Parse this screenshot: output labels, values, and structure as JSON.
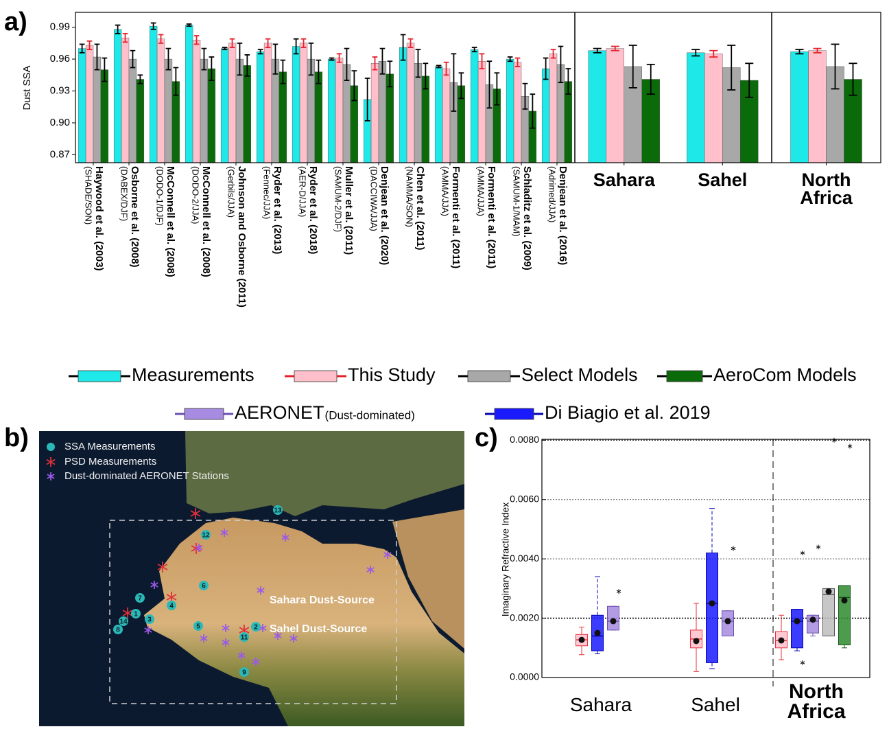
{
  "chart_data": [
    {
      "type": "bar",
      "panel_label": "a)",
      "ylabel": "Dust SSA",
      "ylim": [
        0.8625,
        1.004
      ],
      "yticks": [
        0.87,
        {
          "value": 0.9,
          "label": "0.90"
        },
        0.93,
        0.96,
        0.99
      ],
      "categories": [
        "Haywood et al. (2003)",
        "Osborne et al. (2008)",
        "McConnell et al. (2008)",
        "McConnell et al. (2008)",
        "Johnson and Osborne (2011)",
        "Ryder et al. (2013)",
        "Ryder et al. (2018)",
        "Muller et al. (2011)",
        "Denjean et al. (2020)",
        "Chen et al. (2011)",
        "Formenti et al. (2011)",
        "Formenti et al. (2011)",
        "Schladitz et al. (2009)",
        "Denjean et al. (2016)",
        "Sahara",
        "Sahel",
        "North Africa"
      ],
      "category_sublabels": [
        "(SHADE/SON)",
        "(DABEX/DJF)",
        "(DODO-1/DJF)",
        "(DODO-2/JJA)",
        "(Gerbils/JJA)",
        "(Fennec/JJA)",
        "(AER-D/JJA)",
        "(SAMUM-2/DJF)",
        "(DACCIWA/JJA)",
        "(NAMMA/SON)",
        "(AMMA/JJA)",
        "(AMMA/JJA)",
        "(SAMUM-1/MAM)",
        "(Adrimed/JJA)",
        null,
        null,
        null
      ],
      "series": [
        {
          "name": "Measurements",
          "color": "#1fe8e8",
          "error_color": "#000000",
          "values": [
            0.97,
            0.988,
            0.991,
            0.992,
            0.97,
            0.967,
            0.972,
            0.96,
            0.922,
            0.971,
            0.953,
            0.969,
            0.96,
            0.951,
            0.968,
            0.966,
            0.967
          ],
          "errors": [
            0.004,
            0.004,
            0.003,
            0.001,
            0.001,
            0.002,
            0.007,
            0.001,
            0.02,
            0.012,
            0.001,
            0.002,
            0.002,
            0.01,
            0.002,
            0.003,
            0.002
          ]
        },
        {
          "name": "This Study",
          "color": "#ffc0cb",
          "error_color": "#e8202a",
          "values": [
            0.973,
            0.98,
            0.979,
            0.978,
            0.975,
            0.975,
            0.975,
            0.961,
            0.956,
            0.975,
            0.951,
            0.958,
            0.957,
            0.965,
            0.97,
            0.965,
            0.968
          ],
          "errors": [
            0.004,
            0.004,
            0.004,
            0.004,
            0.004,
            0.004,
            0.004,
            0.004,
            0.006,
            0.004,
            0.006,
            0.007,
            0.004,
            0.004,
            0.002,
            0.003,
            0.002
          ]
        },
        {
          "name": "Select Models",
          "color": "#a8a8a8",
          "error_color": "#000000",
          "values": [
            0.962,
            0.96,
            0.96,
            0.96,
            0.96,
            0.96,
            0.96,
            0.955,
            0.958,
            0.956,
            0.938,
            0.936,
            0.925,
            0.955,
            0.953,
            0.952,
            0.953
          ],
          "errors": [
            0.012,
            0.008,
            0.01,
            0.01,
            0.015,
            0.014,
            0.015,
            0.015,
            0.012,
            0.013,
            0.027,
            0.022,
            0.012,
            0.017,
            0.02,
            0.021,
            0.021
          ]
        },
        {
          "name": "AeroCom Models",
          "color": "#0b6b0b",
          "error_color": "#000000",
          "values": [
            0.95,
            0.941,
            0.939,
            0.951,
            0.954,
            0.948,
            0.948,
            0.935,
            0.946,
            0.944,
            0.935,
            0.932,
            0.911,
            0.939,
            0.941,
            0.94,
            0.941
          ],
          "errors": [
            0.011,
            0.004,
            0.013,
            0.011,
            0.01,
            0.011,
            0.011,
            0.014,
            0.012,
            0.012,
            0.012,
            0.015,
            0.016,
            0.012,
            0.014,
            0.016,
            0.015
          ]
        }
      ]
    },
    {
      "type": "box",
      "panel_label": "c)",
      "ylabel": "Imaginary Refractive Index",
      "ylim": [
        0,
        0.00803
      ],
      "yticks": [
        {
          "value": 0,
          "label": "0.0000"
        },
        {
          "value": 0.002,
          "label": "0.0020"
        },
        {
          "value": 0.004,
          "label": "0.0040"
        },
        {
          "value": 0.006,
          "label": "0.0060"
        },
        {
          "value": 0.008,
          "label": "0.0080"
        }
      ],
      "grid": true,
      "categories": [
        "Sahara",
        "Sahel",
        "North Africa"
      ],
      "series": [
        {
          "name": "This Study",
          "color": "#ffc0cb",
          "edge": "#e8303a",
          "boxes": [
            {
              "whislo": 0.00077,
              "q1": 0.00107,
              "med": 0.00127,
              "q3": 0.00145,
              "whishi": 0.0017,
              "mean": 0.00127,
              "outliers": []
            },
            {
              "whislo": 0.0002,
              "q1": 0.001,
              "med": 0.0013,
              "q3": 0.0016,
              "whishi": 0.0025,
              "mean": 0.00123,
              "outliers": []
            },
            {
              "whislo": 0.0006,
              "q1": 0.001,
              "med": 0.00125,
              "q3": 0.00155,
              "whishi": 0.0021,
              "mean": 0.00125,
              "outliers": []
            }
          ]
        },
        {
          "name": "Di Biagio et al. 2019",
          "color": "#1a1aff",
          "edge": "#0000b0",
          "boxes": [
            {
              "whislo": 0.0008,
              "q1": 0.0009,
              "med": 0.0014,
              "q3": 0.0021,
              "whishi": 0.0034,
              "mean": 0.0015,
              "outliers": []
            },
            {
              "whislo": 0.0003,
              "q1": 0.0005,
              "med": 0.0025,
              "q3": 0.0042,
              "whishi": 0.0057,
              "mean": 0.0025,
              "outliers": []
            },
            {
              "whislo": 0.0009,
              "q1": 0.001,
              "med": 0.0019,
              "q3": 0.0023,
              "whishi": 0.0023,
              "mean": 0.0019,
              "outliers": [
                0.0042,
                0.0005
              ]
            }
          ]
        },
        {
          "name": "AERONET",
          "name_suffix": "(Dust-dominated)",
          "color": "#a78be0",
          "edge": "#6a4fb0",
          "boxes": [
            {
              "whislo": 0.0016,
              "q1": 0.0016,
              "med": 0.0019,
              "q3": 0.0024,
              "whishi": 0.0024,
              "mean": 0.0019,
              "outliers": [
                0.0029
              ]
            },
            {
              "whislo": 0.0014,
              "q1": 0.0014,
              "med": 0.0019,
              "q3": 0.00225,
              "whishi": 0.00225,
              "mean": 0.0019,
              "outliers": [
                0.00435
              ]
            },
            {
              "whislo": 0.0014,
              "q1": 0.0015,
              "med": 0.0019,
              "q3": 0.0021,
              "whishi": 0.0021,
              "mean": 0.00195,
              "outliers": [
                0.0044
              ]
            }
          ]
        },
        {
          "name": "Select Models",
          "color": "#bdbdbd",
          "edge": "#555555",
          "boxes": [
            null,
            null,
            {
              "whislo": 0.0014,
              "q1": 0.0014,
              "med": 0.0028,
              "q3": 0.003,
              "whishi": 0.003,
              "mean": 0.0029,
              "outliers": [
                0.008
              ]
            }
          ]
        },
        {
          "name": "AeroCom Models",
          "color": "#2e8b2e",
          "edge": "#145214",
          "boxes": [
            null,
            null,
            {
              "whislo": 0.001,
              "q1": 0.0011,
              "med": 0.0027,
              "q3": 0.0031,
              "whishi": 0.0031,
              "mean": 0.0026,
              "outliers": [
                0.0078
              ]
            }
          ]
        }
      ]
    }
  ],
  "map": {
    "panel_label": "b)",
    "legend": [
      "SSA Measurements",
      "PSD Measurements",
      "Dust-dominated AERONET Stations"
    ],
    "regions": [
      "Sahara Dust-Source",
      "Sahel Dust-Source"
    ],
    "sites": [
      "1",
      "2",
      "3",
      "4",
      "5",
      "6",
      "7",
      "8",
      "9",
      "11",
      "12",
      "13",
      "14"
    ]
  }
}
